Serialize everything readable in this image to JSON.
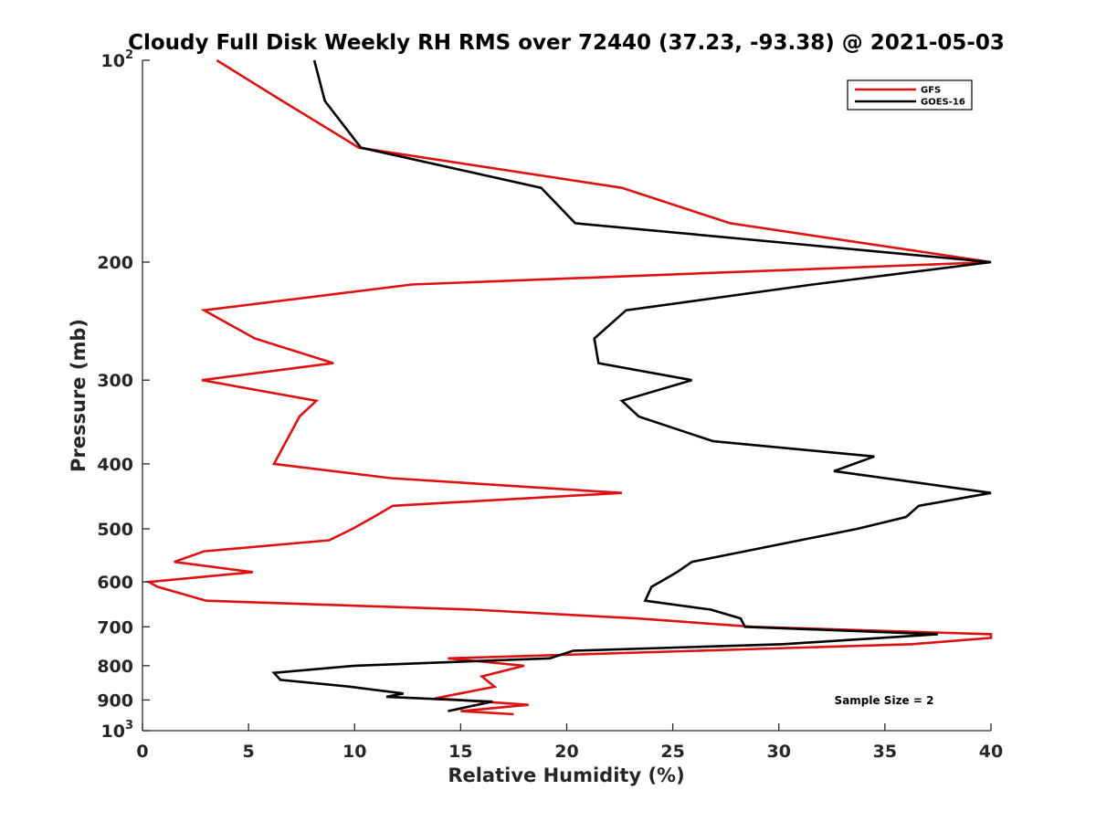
{
  "chart_data": {
    "type": "line",
    "title": "Cloudy Full Disk Weekly RH RMS over 72440 (37.23, -93.38) @ 2021-05-03",
    "xlabel": "Relative Humidity (%)",
    "ylabel": "Pressure (mb)",
    "xlim": [
      0,
      40
    ],
    "ylim": [
      100,
      1000
    ],
    "y_scale": "log",
    "y_reversed": true,
    "x_ticks": [
      "0",
      "5",
      "10",
      "15",
      "20",
      "25",
      "30",
      "35",
      "40"
    ],
    "y_ticks": [
      {
        "value": 100,
        "base": "10",
        "exp": "2"
      },
      {
        "value": 200,
        "label": "200"
      },
      {
        "value": 300,
        "label": "300"
      },
      {
        "value": 400,
        "label": "400"
      },
      {
        "value": 500,
        "label": "500"
      },
      {
        "value": 600,
        "label": "600"
      },
      {
        "value": 700,
        "label": "700"
      },
      {
        "value": 800,
        "label": "800"
      },
      {
        "value": 900,
        "label": "900"
      },
      {
        "value": 1000,
        "base": "10",
        "exp": "3"
      }
    ],
    "grid": false,
    "legend_position": "top-right",
    "annotation": "Sample Size = 2",
    "series": [
      {
        "name": "GFS",
        "color": "#dd1111",
        "points": [
          [
            3.5,
            100
          ],
          [
            6.6,
            115
          ],
          [
            10.2,
            135
          ],
          [
            22.6,
            155
          ],
          [
            27.7,
            175
          ],
          [
            40.0,
            200
          ],
          [
            12.7,
            216
          ],
          [
            2.9,
            236
          ],
          [
            5.3,
            260
          ],
          [
            9.0,
            283
          ],
          [
            2.8,
            300
          ],
          [
            8.2,
            322
          ],
          [
            7.4,
            340
          ],
          [
            6.2,
            400
          ],
          [
            11.7,
            420
          ],
          [
            22.6,
            442
          ],
          [
            11.8,
            462
          ],
          [
            10.9,
            480
          ],
          [
            9.9,
            500
          ],
          [
            8.8,
            520
          ],
          [
            2.9,
            540
          ],
          [
            1.5,
            560
          ],
          [
            5.2,
            580
          ],
          [
            0.3,
            600
          ],
          [
            0.7,
            610
          ],
          [
            3.0,
            640
          ],
          [
            15.6,
            660
          ],
          [
            23.3,
            680
          ],
          [
            28.8,
            700
          ],
          [
            40.0,
            718
          ],
          [
            40.0,
            727
          ],
          [
            36.3,
            743
          ],
          [
            14.4,
            780
          ],
          [
            18.0,
            800
          ],
          [
            16.0,
            830
          ],
          [
            16.6,
            860
          ],
          [
            13.8,
            895
          ],
          [
            18.2,
            915
          ],
          [
            15.0,
            935
          ],
          [
            17.5,
            945
          ]
        ]
      },
      {
        "name": "GOES-16",
        "color": "#000000",
        "points": [
          [
            8.1,
            100
          ],
          [
            8.6,
            115
          ],
          [
            10.3,
            135
          ],
          [
            18.8,
            155
          ],
          [
            20.4,
            175
          ],
          [
            40.0,
            200
          ],
          [
            31.6,
            216
          ],
          [
            22.8,
            236
          ],
          [
            21.3,
            260
          ],
          [
            21.5,
            283
          ],
          [
            25.9,
            300
          ],
          [
            22.6,
            322
          ],
          [
            23.4,
            340
          ],
          [
            26.9,
            370
          ],
          [
            34.5,
            390
          ],
          [
            32.6,
            410
          ],
          [
            40.0,
            442
          ],
          [
            36.6,
            462
          ],
          [
            36.0,
            480
          ],
          [
            33.7,
            500
          ],
          [
            28.4,
            540
          ],
          [
            25.9,
            560
          ],
          [
            25.2,
            580
          ],
          [
            24.4,
            600
          ],
          [
            24.0,
            610
          ],
          [
            23.7,
            640
          ],
          [
            26.8,
            660
          ],
          [
            28.2,
            680
          ],
          [
            28.4,
            700
          ],
          [
            37.5,
            718
          ],
          [
            30.2,
            743
          ],
          [
            20.3,
            760
          ],
          [
            19.2,
            780
          ],
          [
            10.0,
            800
          ],
          [
            6.2,
            820
          ],
          [
            6.5,
            840
          ],
          [
            9.8,
            860
          ],
          [
            12.3,
            880
          ],
          [
            11.5,
            890
          ],
          [
            16.5,
            905
          ],
          [
            14.4,
            935
          ]
        ]
      }
    ]
  }
}
